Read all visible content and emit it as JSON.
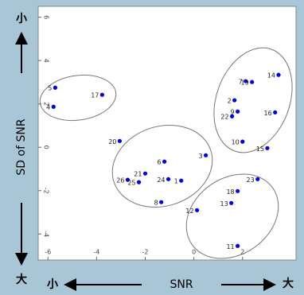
{
  "chart_data": {
    "type": "scatter",
    "xlabel": "SNR",
    "ylabel": "SD of SNR",
    "x_ends": [
      "小",
      "大"
    ],
    "y_ends": [
      "小",
      "大"
    ],
    "color": "#0000e6",
    "labels": [
      "5",
      "4",
      "17",
      "14",
      "7",
      "19",
      "2",
      "9",
      "22",
      "16",
      "10",
      "15",
      "3",
      "20",
      "6",
      "21",
      "26",
      "25",
      "24",
      "1",
      "8",
      "12",
      "23",
      "18",
      "13",
      "11"
    ],
    "x": [
      -5.7,
      -5.77,
      -3.77,
      3.48,
      2.13,
      2.39,
      1.67,
      1.8,
      1.57,
      3.34,
      2.0,
      3.02,
      0.49,
      -3.05,
      -1.21,
      -2.0,
      -2.72,
      -2.26,
      -1.05,
      -0.52,
      -1.34,
      0.13,
      2.62,
      1.8,
      1.54,
      1.8
    ],
    "y": [
      2.75,
      1.87,
      2.42,
      3.34,
      3.05,
      3.01,
      2.17,
      1.65,
      1.43,
      1.61,
      0.26,
      -0.04,
      -0.37,
      0.29,
      -0.66,
      -1.21,
      -1.5,
      -1.61,
      -1.47,
      -1.54,
      -2.53,
      -2.9,
      -1.47,
      -2.02,
      -2.57,
      -4.55
    ],
    "xlim": [
      -6.4,
      4.2
    ],
    "ylim": [
      -5.2,
      6.5
    ],
    "xticks": [
      -6,
      -4,
      -2,
      0,
      2
    ],
    "yticks": [
      -4,
      -2,
      0,
      2,
      4,
      6
    ]
  }
}
